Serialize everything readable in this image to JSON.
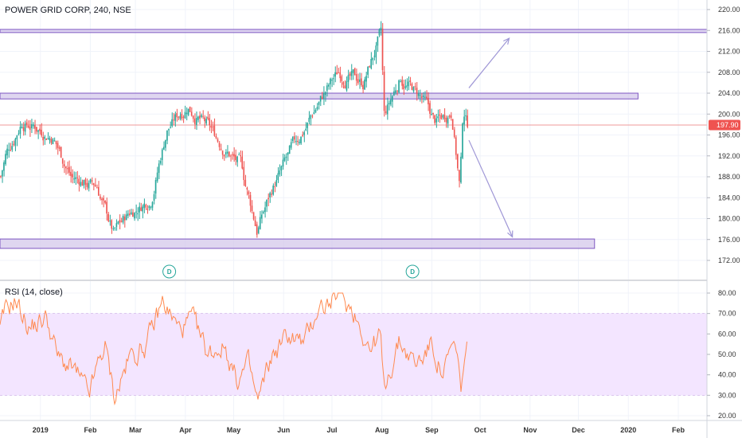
{
  "header": {
    "title": "POWER GRID CORP, 240, NSE"
  },
  "rsi": {
    "label": "RSI (14, close)"
  },
  "colors": {
    "up": "#26a69a",
    "down": "#ef5350",
    "zone_fill": "#d1c4e9",
    "zone_stroke": "#7e57c2",
    "arrow": "#9f97d6",
    "rsi_line": "#ff8a50",
    "rsi_band": "#f3e5ff",
    "last_price_bg": "#ef5350",
    "dividend": "#26a69a"
  },
  "chart_data": [
    {
      "type": "candlestick",
      "title": "POWER GRID CORP, 240, NSE",
      "ylim": [
        169,
        222
      ],
      "y_ticks": [
        "220.00",
        "216.00",
        "212.00",
        "208.00",
        "204.00",
        "200.00",
        "196.00",
        "192.00",
        "188.00",
        "184.00",
        "180.00",
        "176.00",
        "172.00"
      ],
      "x_ticks": [
        "2019",
        "Feb",
        "Mar",
        "Apr",
        "May",
        "Jun",
        "Jul",
        "Aug",
        "Sep",
        "Oct",
        "Nov",
        "Dec",
        "2020",
        "Feb"
      ],
      "last_price": "197.90",
      "key_points": [
        {
          "x": "2018-12-01",
          "y": 180.5
        },
        {
          "x": "2018-12-10",
          "y": 192
        },
        {
          "x": "2018-12-20",
          "y": 199
        },
        {
          "x": "2019-01-08",
          "y": 196
        },
        {
          "x": "2019-01-20",
          "y": 188
        },
        {
          "x": "2019-02-05",
          "y": 186
        },
        {
          "x": "2019-02-15",
          "y": 177
        },
        {
          "x": "2019-02-25",
          "y": 181
        },
        {
          "x": "2019-03-10",
          "y": 184
        },
        {
          "x": "2019-03-20",
          "y": 197
        },
        {
          "x": "2019-04-02",
          "y": 202
        },
        {
          "x": "2019-04-18",
          "y": 196
        },
        {
          "x": "2019-05-05",
          "y": 190
        },
        {
          "x": "2019-05-15",
          "y": 178
        },
        {
          "x": "2019-05-25",
          "y": 186
        },
        {
          "x": "2019-06-08",
          "y": 194
        },
        {
          "x": "2019-06-22",
          "y": 202
        },
        {
          "x": "2019-07-05",
          "y": 208
        },
        {
          "x": "2019-07-20",
          "y": 206
        },
        {
          "x": "2019-07-31",
          "y": 215
        },
        {
          "x": "2019-08-02",
          "y": 199
        },
        {
          "x": "2019-08-12",
          "y": 207
        },
        {
          "x": "2019-08-25",
          "y": 203
        },
        {
          "x": "2019-09-03",
          "y": 198
        },
        {
          "x": "2019-09-13",
          "y": 201
        },
        {
          "x": "2019-09-18",
          "y": 186
        },
        {
          "x": "2019-09-20",
          "y": 201
        },
        {
          "x": "2019-09-23",
          "y": 197.9
        }
      ],
      "zones": [
        {
          "from": "2018-12-01",
          "to": "2020-02-28",
          "low": 215.6,
          "high": 216.2
        },
        {
          "from": "2018-12-01",
          "to": "2020-01-07",
          "low": 202.9,
          "high": 204.0
        },
        {
          "from": "2018-12-01",
          "to": "2019-12-11",
          "low": 174.3,
          "high": 176.1
        }
      ],
      "projection_arrows": [
        {
          "from": {
            "x": "2019-09-24",
            "y": 205
          },
          "to": {
            "x": "2019-10-19",
            "y": 214.5
          }
        },
        {
          "from": {
            "x": "2019-09-24",
            "y": 195
          },
          "to": {
            "x": "2019-10-21",
            "y": 176.5
          }
        }
      ],
      "dividend_markers": [
        {
          "x": "2019-03-22",
          "label": "D"
        },
        {
          "x": "2019-08-20",
          "label": "D"
        }
      ]
    },
    {
      "type": "line",
      "title": "RSI (14, close)",
      "ylim": [
        18,
        82
      ],
      "y_ticks": [
        "80.00",
        "70.00",
        "60.00",
        "50.00",
        "40.00",
        "30.00",
        "20.00"
      ],
      "band": [
        30,
        70
      ],
      "key_points": [
        {
          "x": "2018-12-01",
          "y": 45
        },
        {
          "x": "2018-12-10",
          "y": 70
        },
        {
          "x": "2018-12-16",
          "y": 77
        },
        {
          "x": "2018-12-25",
          "y": 63
        },
        {
          "x": "2019-01-05",
          "y": 68
        },
        {
          "x": "2019-01-12",
          "y": 48
        },
        {
          "x": "2019-01-22",
          "y": 42
        },
        {
          "x": "2019-01-31",
          "y": 30
        },
        {
          "x": "2019-02-10",
          "y": 55
        },
        {
          "x": "2019-02-16",
          "y": 29
        },
        {
          "x": "2019-02-25",
          "y": 48
        },
        {
          "x": "2019-03-08",
          "y": 55
        },
        {
          "x": "2019-03-18",
          "y": 76
        },
        {
          "x": "2019-03-28",
          "y": 62
        },
        {
          "x": "2019-04-05",
          "y": 67
        },
        {
          "x": "2019-04-15",
          "y": 50
        },
        {
          "x": "2019-04-25",
          "y": 55
        },
        {
          "x": "2019-05-03",
          "y": 37
        },
        {
          "x": "2019-05-10",
          "y": 45
        },
        {
          "x": "2019-05-16",
          "y": 26
        },
        {
          "x": "2019-05-24",
          "y": 48
        },
        {
          "x": "2019-06-04",
          "y": 60
        },
        {
          "x": "2019-06-14",
          "y": 55
        },
        {
          "x": "2019-06-22",
          "y": 73
        },
        {
          "x": "2019-06-30",
          "y": 75
        },
        {
          "x": "2019-07-05",
          "y": 79
        },
        {
          "x": "2019-07-15",
          "y": 71
        },
        {
          "x": "2019-07-25",
          "y": 52
        },
        {
          "x": "2019-07-31",
          "y": 60
        },
        {
          "x": "2019-08-02",
          "y": 34
        },
        {
          "x": "2019-08-12",
          "y": 56
        },
        {
          "x": "2019-08-22",
          "y": 45
        },
        {
          "x": "2019-09-01",
          "y": 55
        },
        {
          "x": "2019-09-08",
          "y": 40
        },
        {
          "x": "2019-09-15",
          "y": 55
        },
        {
          "x": "2019-09-19",
          "y": 33
        },
        {
          "x": "2019-09-22",
          "y": 51
        },
        {
          "x": "2019-09-23",
          "y": 52
        }
      ]
    }
  ]
}
